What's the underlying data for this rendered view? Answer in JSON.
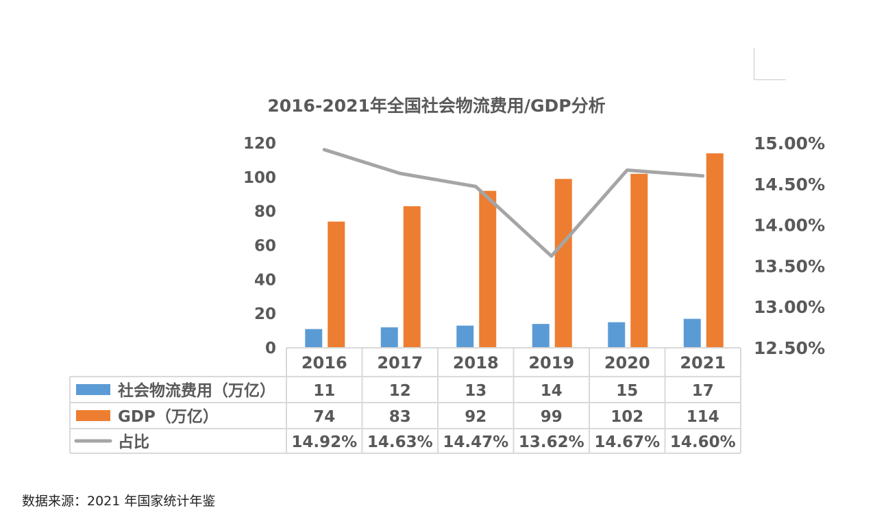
{
  "colors": {
    "bar_cost": "#5B9BD5",
    "bar_gdp": "#ED7D31",
    "line_ratio": "#A5A5A5",
    "text": "#595959",
    "grid": "#D9D9D9"
  },
  "source_note": "数据来源：2021 年国家统计年鉴",
  "chart_data": {
    "type": "bar",
    "title": "2016-2021年全国社会物流费用/GDP分析",
    "categories": [
      "2016",
      "2017",
      "2018",
      "2019",
      "2020",
      "2021"
    ],
    "y_left": {
      "ylim": [
        0,
        120
      ],
      "ticks": [
        "0",
        "20",
        "40",
        "60",
        "80",
        "100",
        "120"
      ]
    },
    "y_right": {
      "ylim": [
        12.5,
        15.0
      ],
      "ticks": [
        "12.50%",
        "13.00%",
        "13.50%",
        "14.00%",
        "14.50%",
        "15.00%"
      ]
    },
    "series": [
      {
        "name": "社会物流费用（万亿）",
        "kind": "bar",
        "axis": "left",
        "color": "#5B9BD5",
        "values": [
          11,
          12,
          13,
          14,
          15,
          17
        ],
        "labels": [
          "11",
          "12",
          "13",
          "14",
          "15",
          "17"
        ]
      },
      {
        "name": "GDP（万亿）",
        "kind": "bar",
        "axis": "left",
        "color": "#ED7D31",
        "values": [
          74,
          83,
          92,
          99,
          102,
          114
        ],
        "labels": [
          "74",
          "83",
          "92",
          "99",
          "102",
          "114"
        ]
      },
      {
        "name": "占比",
        "kind": "line",
        "axis": "right",
        "color": "#A5A5A5",
        "values": [
          14.92,
          14.63,
          14.47,
          13.62,
          14.67,
          14.6
        ],
        "labels": [
          "14.92%",
          "14.63%",
          "14.47%",
          "13.62%",
          "14.67%",
          "14.60%"
        ]
      }
    ],
    "legend": "data-table",
    "grid": false
  }
}
